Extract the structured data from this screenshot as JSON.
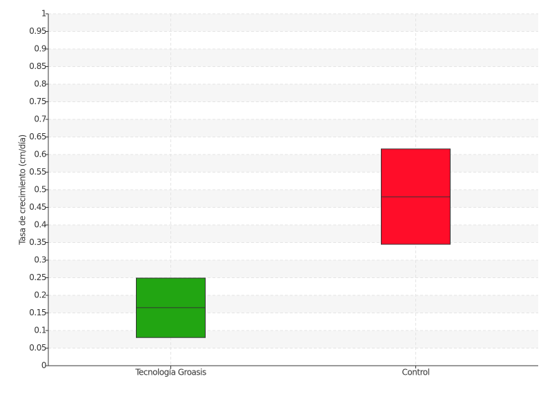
{
  "chart_data": {
    "type": "box",
    "ylabel": "Tasa de crecimiento (cm/día)",
    "categories": [
      "Tecnología Groasis",
      "Control"
    ],
    "q1": [
      0.08,
      0.345
    ],
    "median": [
      0.165,
      0.48
    ],
    "q3": [
      0.249,
      0.616
    ],
    "colors": [
      "#22a512",
      "#ff0d29"
    ],
    "ylim": [
      0,
      1
    ],
    "yticks": [
      0,
      0.05,
      0.1,
      0.15,
      0.2,
      0.25,
      0.3,
      0.35,
      0.4,
      0.45,
      0.5,
      0.55,
      0.6,
      0.65,
      0.7,
      0.75,
      0.8,
      0.85,
      0.9,
      0.95,
      1
    ],
    "grid": true
  }
}
